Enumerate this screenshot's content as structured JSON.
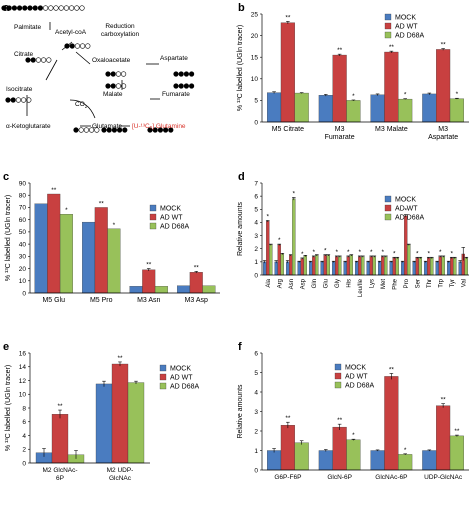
{
  "figure": {
    "panel_letters": [
      "a",
      "b",
      "c",
      "d",
      "e",
      "f"
    ]
  },
  "pathway": {
    "labels": {
      "palmitate": "Palmitate",
      "acetylcoa": "Acetyl-coA",
      "reduction": "Reduction",
      "carboxylation": "carboxylation",
      "citrate": "Citrate",
      "oxaloacetate": "Oxaloacetate",
      "aspartate": "Aspartate",
      "malate": "Malate",
      "fumarate": "Fumarate",
      "isocitrate": "Isocitrate",
      "co2": "CO",
      "co2_sub": "2",
      "akg": "α-Ketoglutarate",
      "glutamate": "Glutamate",
      "glutamine": "[U-¹³C₅] Glutamine"
    },
    "colors": {
      "filled": "#000000",
      "open": "#ffffff",
      "highlight": "#d9342b"
    }
  },
  "chart_data": [
    {
      "panel": "b",
      "type": "bar",
      "ylabel": "% ¹³C labelled (UGln tracer)",
      "ylim": [
        0,
        25
      ],
      "yticks": [
        0,
        5,
        10,
        15,
        20,
        25
      ],
      "categories": [
        [
          "M5 Citrate"
        ],
        [
          "M3",
          "Fumarate"
        ],
        [
          "M3 Malate"
        ],
        [
          "M3",
          "Aspartate"
        ]
      ],
      "series": [
        {
          "name": "MOCK",
          "color": "#4a7cc0",
          "values": [
            6.8,
            6.2,
            6.3,
            6.5
          ],
          "errors": [
            0.2,
            0.2,
            0.2,
            0.2
          ]
        },
        {
          "name": "AD WT",
          "color": "#c84040",
          "values": [
            23.0,
            15.5,
            16.2,
            16.8
          ],
          "errors": [
            0.3,
            0.2,
            0.2,
            0.2
          ]
        },
        {
          "name": "AD D68A",
          "color": "#98c15a",
          "values": [
            6.7,
            5.0,
            5.3,
            5.4
          ],
          "errors": [
            0.1,
            0.1,
            0.1,
            0.1
          ]
        }
      ],
      "annotations": [
        {
          "category": 0,
          "series": 1,
          "text": "**"
        },
        {
          "category": 1,
          "series": 1,
          "text": "**"
        },
        {
          "category": 1,
          "series": 2,
          "text": "*"
        },
        {
          "category": 2,
          "series": 1,
          "text": "**"
        },
        {
          "category": 2,
          "series": 2,
          "text": "*"
        },
        {
          "category": 3,
          "series": 1,
          "text": "**"
        },
        {
          "category": 3,
          "series": 2,
          "text": "*"
        }
      ],
      "legend": "top-right"
    },
    {
      "panel": "c",
      "type": "bar",
      "ylabel": "% ¹³C labelled (UGln tracer)",
      "ylim": [
        0,
        90
      ],
      "yticks": [
        0,
        10,
        20,
        30,
        40,
        50,
        60,
        70,
        80,
        90
      ],
      "categories": [
        [
          "M5 Glu"
        ],
        [
          "M5 Pro"
        ],
        [
          "M3 Asn"
        ],
        [
          "M3 Asp"
        ]
      ],
      "series": [
        {
          "name": "MOCK",
          "color": "#4a7cc0",
          "values": [
            73,
            58,
            5.5,
            6
          ],
          "errors": [
            0,
            0,
            0,
            0
          ]
        },
        {
          "name": "AD WT",
          "color": "#c84040",
          "values": [
            81,
            70,
            19,
            17
          ],
          "errors": [
            0,
            0,
            1,
            0.7
          ]
        },
        {
          "name": "AD D68A",
          "color": "#98c15a",
          "values": [
            64.5,
            52.5,
            5.5,
            6
          ],
          "errors": [
            0,
            0,
            0,
            0
          ]
        }
      ],
      "annotations": [
        {
          "category": 0,
          "series": 1,
          "text": "**"
        },
        {
          "category": 0,
          "series": 2,
          "text": "*"
        },
        {
          "category": 1,
          "series": 1,
          "text": "**"
        },
        {
          "category": 1,
          "series": 2,
          "text": "*"
        },
        {
          "category": 2,
          "series": 1,
          "text": "**"
        },
        {
          "category": 3,
          "series": 1,
          "text": "**"
        }
      ],
      "legend": "top-right"
    },
    {
      "panel": "d",
      "type": "bar",
      "ylabel": "Relative amounts",
      "ylim": [
        0,
        7
      ],
      "yticks": [
        0,
        1,
        2,
        3,
        4,
        5,
        6,
        7
      ],
      "categories": [
        [
          "Ala"
        ],
        [
          "Arg"
        ],
        [
          "Asn"
        ],
        [
          "Asp"
        ],
        [
          "Gln"
        ],
        [
          "Glu"
        ],
        [
          "Gly"
        ],
        [
          "His"
        ],
        [
          "Leu/Ile"
        ],
        [
          "Lys"
        ],
        [
          "Met"
        ],
        [
          "Phe"
        ],
        [
          "Pro"
        ],
        [
          "Ser"
        ],
        [
          "Thr"
        ],
        [
          "Trp"
        ],
        [
          "Tyr"
        ],
        [
          "Val"
        ]
      ],
      "tick_rotation": -90,
      "series": [
        {
          "name": "MOCK",
          "color": "#4a7cc0",
          "values": [
            1,
            1,
            1,
            1,
            1,
            1,
            1,
            1,
            1,
            1,
            1,
            1,
            1,
            1,
            1,
            1,
            1,
            1
          ],
          "errors": [
            0.1,
            0.1,
            0.1,
            0.05,
            0.05,
            0.05,
            0.05,
            0.05,
            0.05,
            0.05,
            0.05,
            0.05,
            0.05,
            0.05,
            0.05,
            0.05,
            0.05,
            0.1
          ]
        },
        {
          "name": "AD WT",
          "color": "#c84040",
          "values": [
            4.1,
            2.3,
            1.5,
            1.25,
            1.4,
            1.5,
            1.4,
            1.4,
            1.4,
            1.4,
            1.4,
            1.3,
            4.5,
            1.3,
            1.3,
            1.4,
            1.3,
            1.6
          ],
          "errors": [
            0.05,
            0.05,
            0.05,
            0.05,
            0.05,
            0.05,
            0.05,
            0.05,
            0.05,
            0.05,
            0.05,
            0.05,
            0.1,
            0.05,
            0.05,
            0.05,
            0.05,
            0.5
          ]
        },
        {
          "name": "AD D68A",
          "color": "#98c15a",
          "values": [
            2.3,
            1.6,
            5.8,
            1.45,
            1.5,
            1.5,
            1.4,
            1.5,
            1.4,
            1.4,
            1.4,
            1.3,
            2.3,
            1.3,
            1.3,
            1.4,
            1.3,
            1.3
          ],
          "errors": [
            0.05,
            0.05,
            0.1,
            0.05,
            0.05,
            0.05,
            0.05,
            0.05,
            0.05,
            0.05,
            0.05,
            0.05,
            0.05,
            0.05,
            0.05,
            0.05,
            0.05,
            0.05
          ]
        }
      ],
      "annotations": [
        {
          "category": 0,
          "series": 1,
          "text": "*"
        },
        {
          "category": 1,
          "series": 1,
          "text": "*"
        },
        {
          "category": 2,
          "series": 2,
          "text": "*"
        },
        {
          "category": 3,
          "series": 1,
          "text": "*"
        },
        {
          "category": 4,
          "series": 1,
          "text": "*"
        },
        {
          "category": 5,
          "series": 1,
          "text": "*"
        },
        {
          "category": 6,
          "series": 1,
          "text": "*"
        },
        {
          "category": 7,
          "series": 1,
          "text": "*"
        },
        {
          "category": 8,
          "series": 1,
          "text": "*"
        },
        {
          "category": 9,
          "series": 1,
          "text": "*"
        },
        {
          "category": 10,
          "series": 1,
          "text": "*"
        },
        {
          "category": 11,
          "series": 1,
          "text": "*"
        },
        {
          "category": 12,
          "series": 1,
          "text": "*"
        },
        {
          "category": 13,
          "series": 1,
          "text": "*"
        },
        {
          "category": 14,
          "series": 1,
          "text": "*"
        },
        {
          "category": 15,
          "series": 1,
          "text": "*"
        },
        {
          "category": 16,
          "series": 1,
          "text": "*"
        }
      ],
      "legend": "top-right"
    },
    {
      "panel": "e",
      "type": "bar",
      "ylabel": "% ¹³C labelled (UGln tracer)",
      "ylim": [
        0,
        16
      ],
      "yticks": [
        0,
        2,
        4,
        6,
        8,
        10,
        12,
        14,
        16
      ],
      "categories": [
        [
          "M2 GlcNAc-",
          "6P"
        ],
        [
          "M2 UDP-",
          "GlcNAc"
        ]
      ],
      "series": [
        {
          "name": "MOCK",
          "color": "#4a7cc0",
          "values": [
            1.5,
            11.5
          ],
          "errors": [
            0.6,
            0.4
          ]
        },
        {
          "name": "AD WT",
          "color": "#c84040",
          "values": [
            7.1,
            14.4
          ],
          "errors": [
            0.6,
            0.3
          ]
        },
        {
          "name": "AD D68A",
          "color": "#98c15a",
          "values": [
            1.2,
            11.7
          ],
          "errors": [
            0.6,
            0.2
          ]
        }
      ],
      "annotations": [
        {
          "category": 0,
          "series": 1,
          "text": "**"
        },
        {
          "category": 1,
          "series": 1,
          "text": "**"
        }
      ],
      "legend": "top-right"
    },
    {
      "panel": "f",
      "type": "bar",
      "ylabel": "Relative amounts",
      "ylim": [
        0,
        6
      ],
      "yticks": [
        0,
        1,
        2,
        3,
        4,
        5,
        6
      ],
      "categories": [
        [
          "G6P-F6P"
        ],
        [
          "GlcN-6P"
        ],
        [
          "GlcNAc-6P"
        ],
        [
          "UDP-GlcNAc"
        ]
      ],
      "series": [
        {
          "name": "MOCK",
          "color": "#4a7cc0",
          "values": [
            1,
            1,
            1,
            1
          ],
          "errors": [
            0.1,
            0.05,
            0.03,
            0.03
          ]
        },
        {
          "name": "AD WT",
          "color": "#c84040",
          "values": [
            2.3,
            2.2,
            4.8,
            3.3
          ],
          "errors": [
            0.15,
            0.15,
            0.15,
            0.1
          ]
        },
        {
          "name": "AD D68A",
          "color": "#98c15a",
          "values": [
            1.4,
            1.55,
            0.8,
            1.75
          ],
          "errors": [
            0.1,
            0.03,
            0.03,
            0.04
          ]
        }
      ],
      "annotations": [
        {
          "category": 0,
          "series": 1,
          "text": "**"
        },
        {
          "category": 1,
          "series": 1,
          "text": "**"
        },
        {
          "category": 1,
          "series": 2,
          "text": "*"
        },
        {
          "category": 2,
          "series": 1,
          "text": "**"
        },
        {
          "category": 2,
          "series": 2,
          "text": "*"
        },
        {
          "category": 3,
          "series": 1,
          "text": "**"
        },
        {
          "category": 3,
          "series": 2,
          "text": "**"
        }
      ],
      "legend": "top-right"
    }
  ]
}
